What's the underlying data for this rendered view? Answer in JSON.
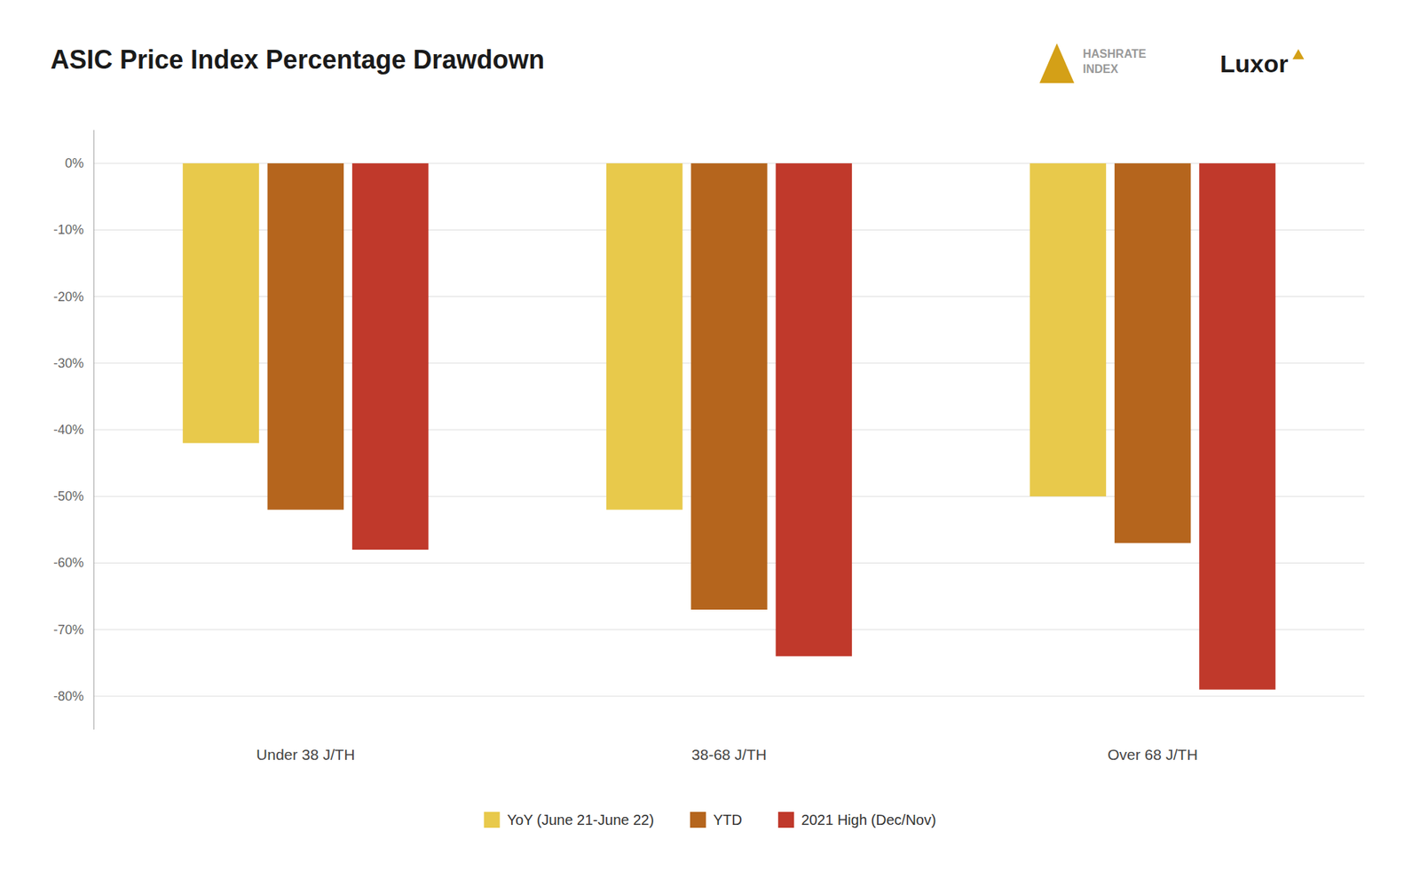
{
  "chart_data": {
    "type": "bar",
    "title": "ASIC Price Index Percentage Drawdown",
    "categories": [
      "Under 38 J/TH",
      "38-68 J/TH",
      "Over 68 J/TH"
    ],
    "series": [
      {
        "name": "YoY (June 21-June 22)",
        "values": [
          -42,
          -52,
          -50
        ],
        "color": "#E8C94B"
      },
      {
        "name": "YTD",
        "values": [
          -52,
          -67,
          -57
        ],
        "color": "#B5651D"
      },
      {
        "name": "2021 High (Dec/Nov)",
        "values": [
          -58,
          -74,
          -79
        ],
        "color": "#C0392B"
      }
    ],
    "ylim": [
      -85,
      5
    ],
    "yticks": [
      {
        "value": 0,
        "label": "0%"
      },
      {
        "value": -10,
        "label": "-10%"
      },
      {
        "value": -20,
        "label": "-20%"
      },
      {
        "value": -30,
        "label": "-30%"
      },
      {
        "value": -40,
        "label": "-40%"
      },
      {
        "value": -50,
        "label": "-50%"
      },
      {
        "value": -60,
        "label": "-60%"
      },
      {
        "value": -70,
        "label": "-70%"
      },
      {
        "value": -80,
        "label": "-80%"
      }
    ],
    "grid": true,
    "legend": "bottom",
    "annotations": [
      "HASHRATE\nINDEX",
      "Luxor"
    ]
  }
}
